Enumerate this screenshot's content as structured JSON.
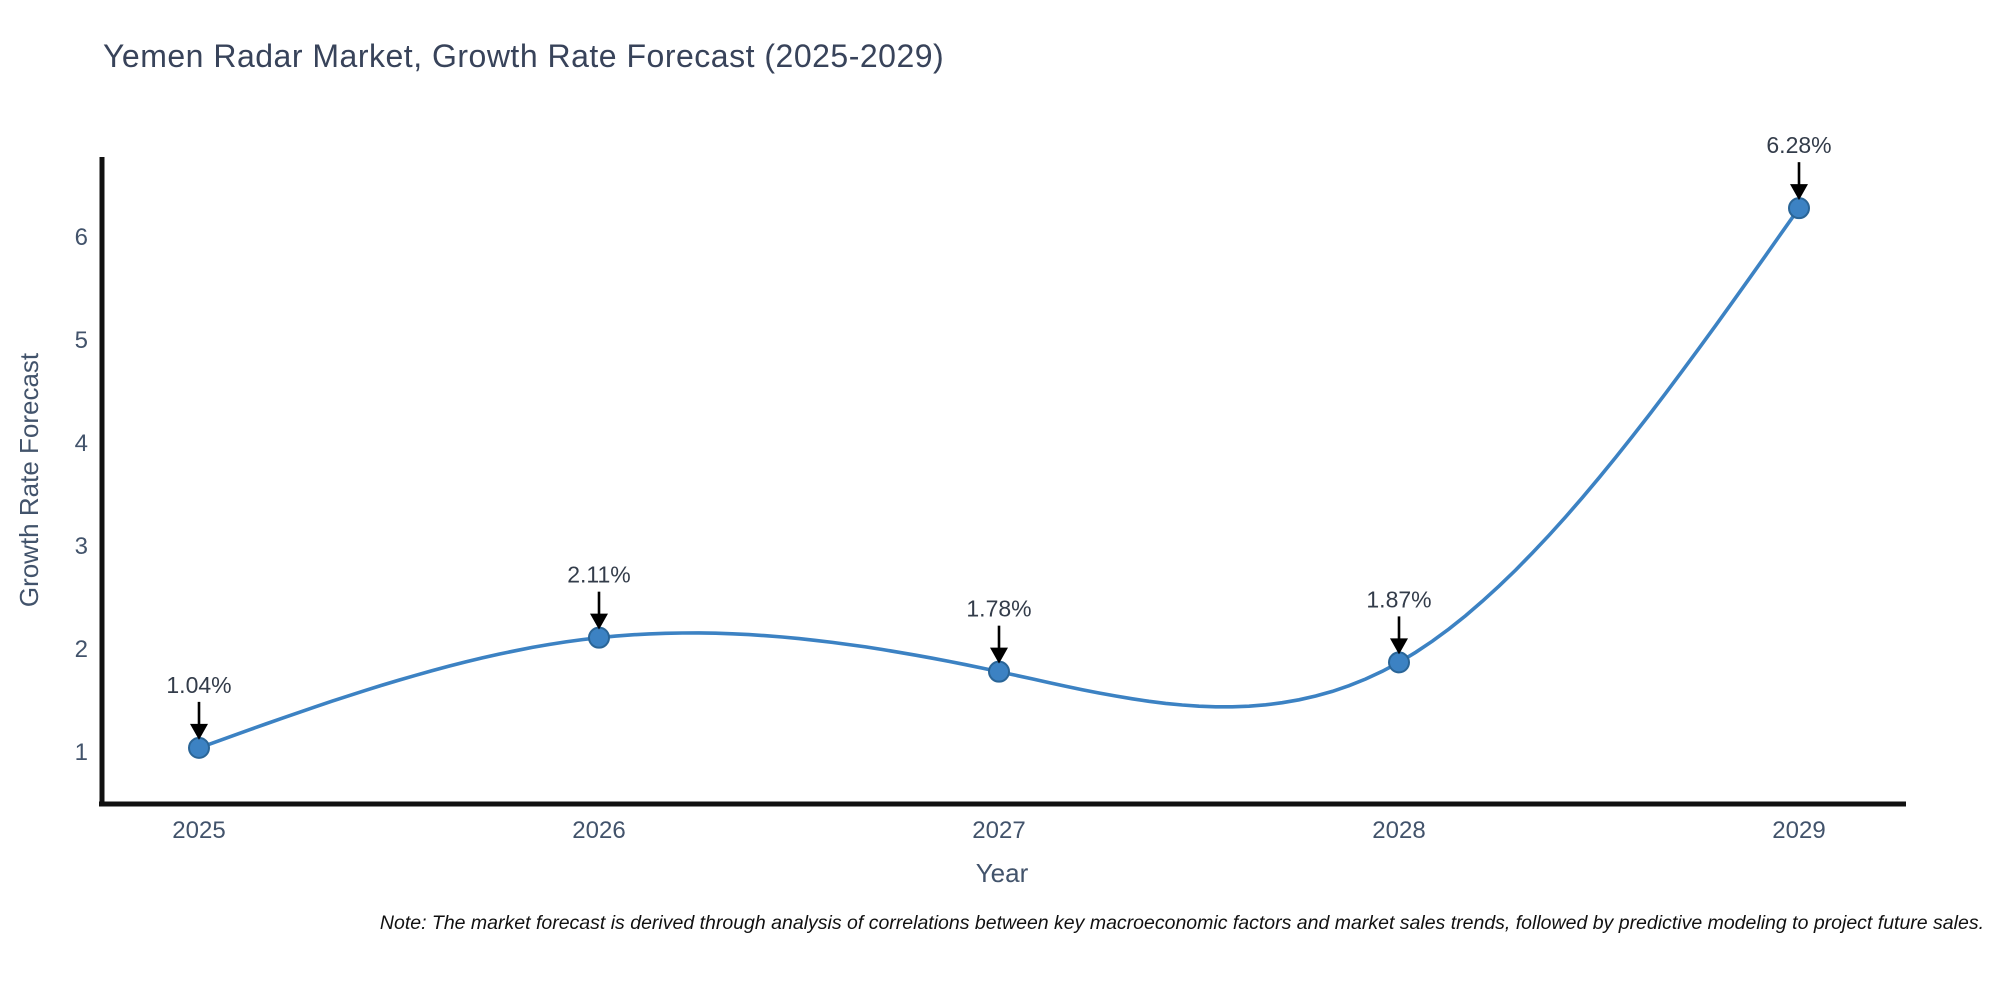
{
  "title": "Yemen Radar Market, Growth Rate Forecast (2025-2029)",
  "note": "Note: The market forecast is derived through analysis of correlations between key macroeconomic factors and market sales trends, followed by predictive modeling to project future sales.",
  "chart_data": {
    "type": "line",
    "title": "Yemen Radar Market, Growth Rate Forecast (2025-2029)",
    "xlabel": "Year",
    "ylabel": "Growth Rate Forecast",
    "categories": [
      "2025",
      "2026",
      "2027",
      "2028",
      "2029"
    ],
    "series": [
      {
        "name": "Growth Rate Forecast",
        "values": [
          1.04,
          2.11,
          1.78,
          1.87,
          6.28
        ],
        "point_labels": [
          "1.04%",
          "2.11%",
          "1.78%",
          "1.87%",
          "6.28%"
        ]
      }
    ],
    "yticks": [
      1,
      2,
      3,
      4,
      5,
      6
    ],
    "ylim": [
      0.55,
      6.8
    ],
    "grid": false,
    "legend": "none",
    "smoothing": "cubic-spline",
    "colors": {
      "line": "#3c82c3",
      "marker_fill": "#3c82c3",
      "marker_edge": "#2a6597",
      "arrow": "#000000",
      "point_label": "#333c4a",
      "tick_label": "#42536b",
      "axis_line": "#111111",
      "title": "#38435a",
      "note": "#111111"
    }
  }
}
